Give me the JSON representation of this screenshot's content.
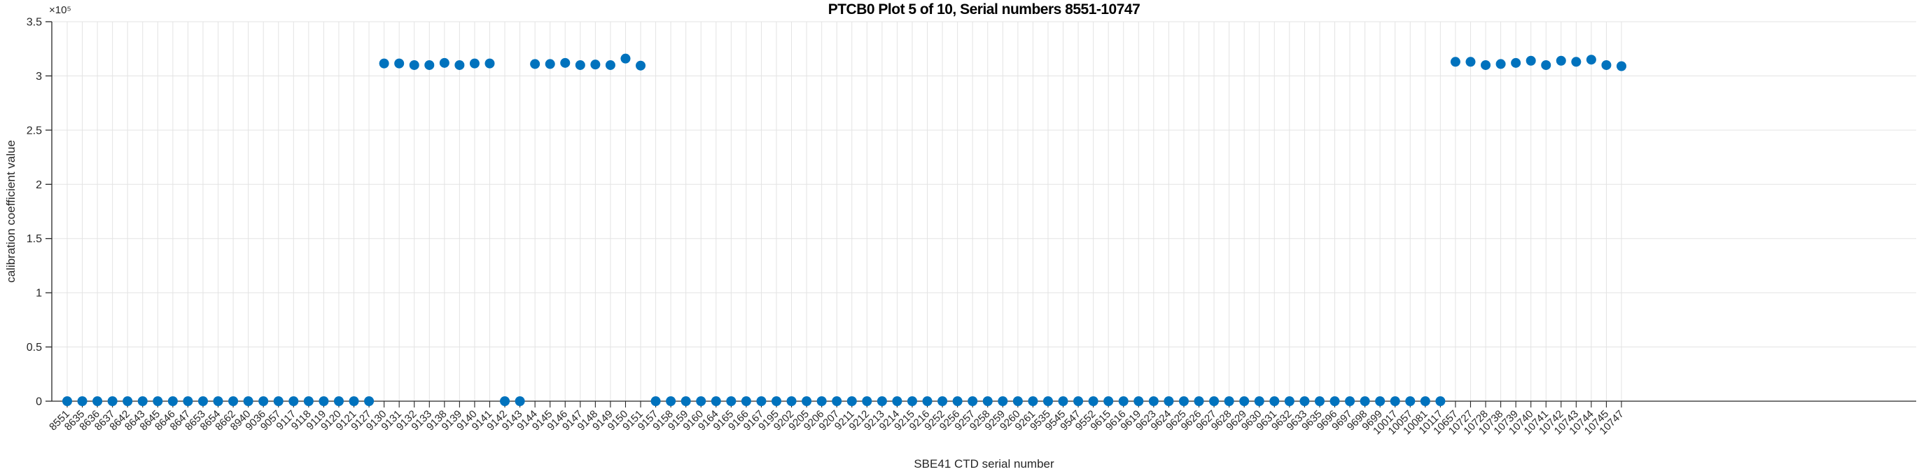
{
  "figure": {
    "title": "PTCB0 Plot 5 of 10, Serial numbers 8551-10747",
    "xlabel": "SBE41 CTD serial number",
    "ylabel": "calibration coefficient value",
    "exponent_label": "×10⁵"
  },
  "chart_data": {
    "type": "scatter",
    "title": "PTCB0 Plot 5 of 10, Serial numbers 8551-10747",
    "xlabel": "SBE41 CTD serial number",
    "ylabel": "calibration coefficient value",
    "marker_color": "#0072BD",
    "grid": true,
    "legend": "none",
    "ylim": [
      0,
      350000
    ],
    "yticks": [
      0,
      50000,
      100000,
      150000,
      200000,
      250000,
      300000,
      350000
    ],
    "ytick_labels": [
      "0",
      "0.5",
      "1",
      "1.5",
      "2",
      "2.5",
      "3",
      "3.5"
    ],
    "y_exponent": "×10⁵",
    "categories": [
      "8551",
      "8635",
      "8636",
      "8637",
      "8642",
      "8643",
      "8645",
      "8646",
      "8647",
      "8653",
      "8654",
      "8662",
      "8940",
      "9036",
      "9057",
      "9117",
      "9118",
      "9119",
      "9120",
      "9121",
      "9127",
      "9130",
      "9131",
      "9132",
      "9133",
      "9138",
      "9139",
      "9140",
      "9141",
      "9142",
      "9143",
      "9144",
      "9145",
      "9146",
      "9147",
      "9148",
      "9149",
      "9150",
      "9151",
      "9157",
      "9158",
      "9159",
      "9160",
      "9164",
      "9165",
      "9166",
      "9167",
      "9195",
      "9202",
      "9205",
      "9206",
      "9207",
      "9211",
      "9212",
      "9213",
      "9214",
      "9215",
      "9216",
      "9252",
      "9256",
      "9257",
      "9258",
      "9259",
      "9260",
      "9261",
      "9535",
      "9545",
      "9547",
      "9552",
      "9615",
      "9616",
      "9619",
      "9623",
      "9624",
      "9625",
      "9626",
      "9627",
      "9628",
      "9629",
      "9630",
      "9631",
      "9632",
      "9633",
      "9635",
      "9696",
      "9697",
      "9698",
      "9699",
      "10017",
      "10057",
      "10081",
      "10117",
      "10657",
      "10727",
      "10728",
      "10738",
      "10739",
      "10740",
      "10741",
      "10742",
      "10743",
      "10744",
      "10745",
      "10747"
    ],
    "values": [
      0,
      0,
      0,
      0,
      0,
      0,
      0,
      0,
      0,
      0,
      0,
      0,
      0,
      0,
      0,
      0,
      0,
      0,
      0,
      0,
      0,
      311500,
      311500,
      310000,
      310000,
      312000,
      310000,
      311500,
      311500,
      0,
      0,
      311000,
      311000,
      312000,
      310000,
      310500,
      310000,
      316000,
      309500,
      0,
      0,
      0,
      0,
      0,
      0,
      0,
      0,
      0,
      0,
      0,
      0,
      0,
      0,
      0,
      0,
      0,
      0,
      0,
      0,
      0,
      0,
      0,
      0,
      0,
      0,
      0,
      0,
      0,
      0,
      0,
      0,
      0,
      0,
      0,
      0,
      0,
      0,
      0,
      0,
      0,
      0,
      0,
      0,
      0,
      0,
      0,
      0,
      0,
      0,
      0,
      0,
      0,
      313000,
      313000,
      310000,
      311000,
      312000,
      314000,
      310000,
      314000,
      313000,
      315000,
      310000,
      309000
    ]
  }
}
